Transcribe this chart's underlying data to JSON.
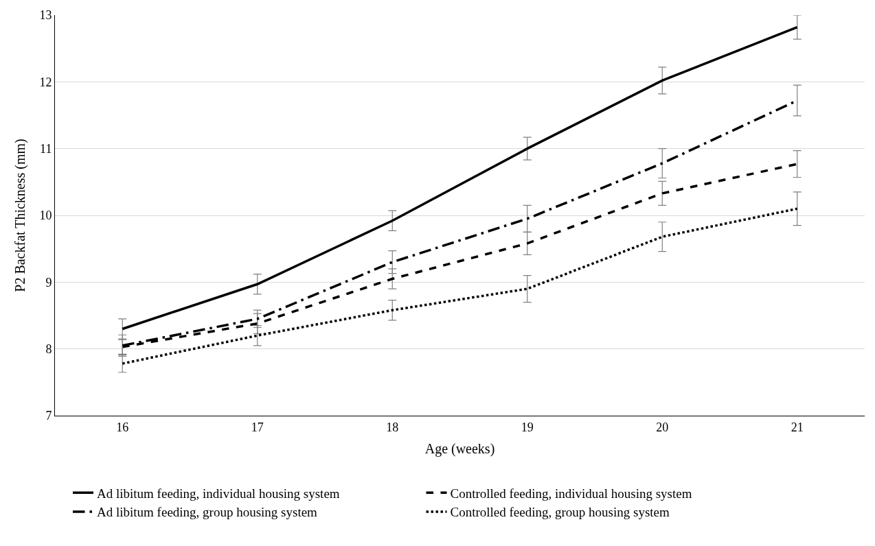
{
  "chart_data": {
    "type": "line",
    "xlabel": "Age (weeks)",
    "ylabel": "P2 Backfat Thickness (mm)",
    "x": [
      16,
      17,
      18,
      19,
      20,
      21
    ],
    "xlim": [
      15.5,
      21.5
    ],
    "xticks": [
      16,
      17,
      18,
      19,
      20,
      21
    ],
    "ylim": [
      7,
      13
    ],
    "yticks": [
      7,
      8,
      9,
      10,
      11,
      12,
      13
    ],
    "grid": "y",
    "legend": "bottom",
    "marker": "none",
    "series": [
      {
        "name": "Ad libitum feeding, individual housing system",
        "color": "#000000",
        "line_style": "solid",
        "values": [
          8.3,
          8.97,
          9.92,
          11.0,
          12.02,
          12.82
        ],
        "errors": [
          0.15,
          0.15,
          0.15,
          0.17,
          0.2,
          0.18
        ]
      },
      {
        "name": "Controlled feeding, individual housing system",
        "color": "#000000",
        "line_style": "dashed",
        "values": [
          8.03,
          8.38,
          9.05,
          9.58,
          10.33,
          10.77
        ],
        "errors": [
          0.11,
          0.15,
          0.15,
          0.17,
          0.18,
          0.2
        ]
      },
      {
        "name": "Ad libitum feeding, group housing system",
        "color": "#000000",
        "line_style": "dashdot",
        "values": [
          8.05,
          8.45,
          9.3,
          9.95,
          10.78,
          11.72
        ],
        "errors": [
          0.16,
          0.13,
          0.17,
          0.2,
          0.22,
          0.23
        ]
      },
      {
        "name": "Controlled feeding, group housing system",
        "color": "#000000",
        "line_style": "dotted",
        "values": [
          7.78,
          8.2,
          8.58,
          8.9,
          9.68,
          10.1
        ],
        "errors": [
          0.13,
          0.15,
          0.15,
          0.2,
          0.22,
          0.25
        ]
      }
    ]
  }
}
